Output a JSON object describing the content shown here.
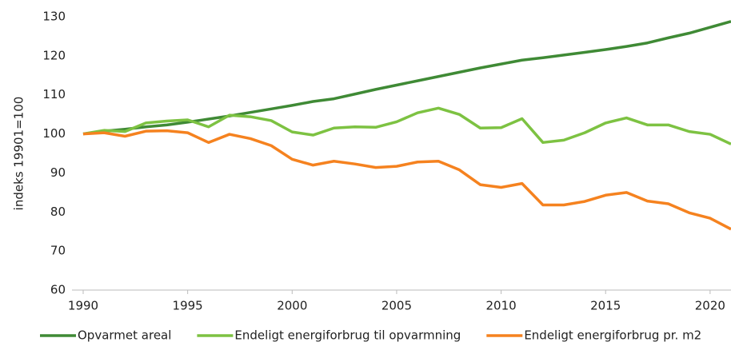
{
  "chart_data": {
    "type": "line",
    "y_label": "indeks 19901=100",
    "x": [
      1990,
      1991,
      1992,
      1993,
      1994,
      1995,
      1996,
      1997,
      1998,
      1999,
      2000,
      2001,
      2002,
      2003,
      2004,
      2005,
      2006,
      2007,
      2008,
      2009,
      2010,
      2011,
      2012,
      2013,
      2014,
      2015,
      2016,
      2017,
      2018,
      2019,
      2020,
      2021
    ],
    "series": [
      {
        "name": "Opvarmet areal",
        "color": "#3f8a35",
        "values": [
          100,
          100.7,
          101.2,
          101.8,
          102.3,
          103,
          103.8,
          104.6,
          105.5,
          106.4,
          107.3,
          108.3,
          109,
          110.2,
          111.4,
          112.5,
          113.6,
          114.7,
          115.8,
          116.9,
          117.9,
          118.9,
          119.5,
          120.2,
          120.9,
          121.6,
          122.4,
          123.3,
          124.6,
          125.8,
          127.3,
          128.8
        ]
      },
      {
        "name": "Endeligt energiforbrug til opvarmning",
        "color": "#7dc242",
        "values": [
          100,
          100.9,
          100.6,
          102.8,
          103.3,
          103.6,
          101.8,
          104.8,
          104.4,
          103.4,
          100.5,
          99.7,
          101.5,
          101.8,
          101.7,
          103.1,
          105.4,
          106.6,
          105,
          101.5,
          101.6,
          103.9,
          97.8,
          98.4,
          100.3,
          102.8,
          104.1,
          102.3,
          102.3,
          100.6,
          99.9,
          97.4
        ]
      },
      {
        "name": "Endeligt energiforbrug pr. m2",
        "color": "#f5821f",
        "values": [
          100,
          100.3,
          99.4,
          100.7,
          100.8,
          100.3,
          97.8,
          99.9,
          98.8,
          97,
          93.5,
          92,
          93,
          92.3,
          91.4,
          91.7,
          92.8,
          93,
          90.8,
          87,
          86.3,
          87.3,
          81.8,
          81.8,
          82.7,
          84.3,
          85,
          82.8,
          82.1,
          79.8,
          78.4,
          75.6
        ]
      }
    ],
    "xlim": [
      1990,
      2021
    ],
    "xticks": [
      1990,
      1995,
      2000,
      2005,
      2010,
      2015,
      2020
    ],
    "ylim": [
      60,
      130
    ],
    "yticks": [
      60,
      70,
      80,
      90,
      100,
      110,
      120,
      130
    ],
    "legend": "bottom"
  }
}
